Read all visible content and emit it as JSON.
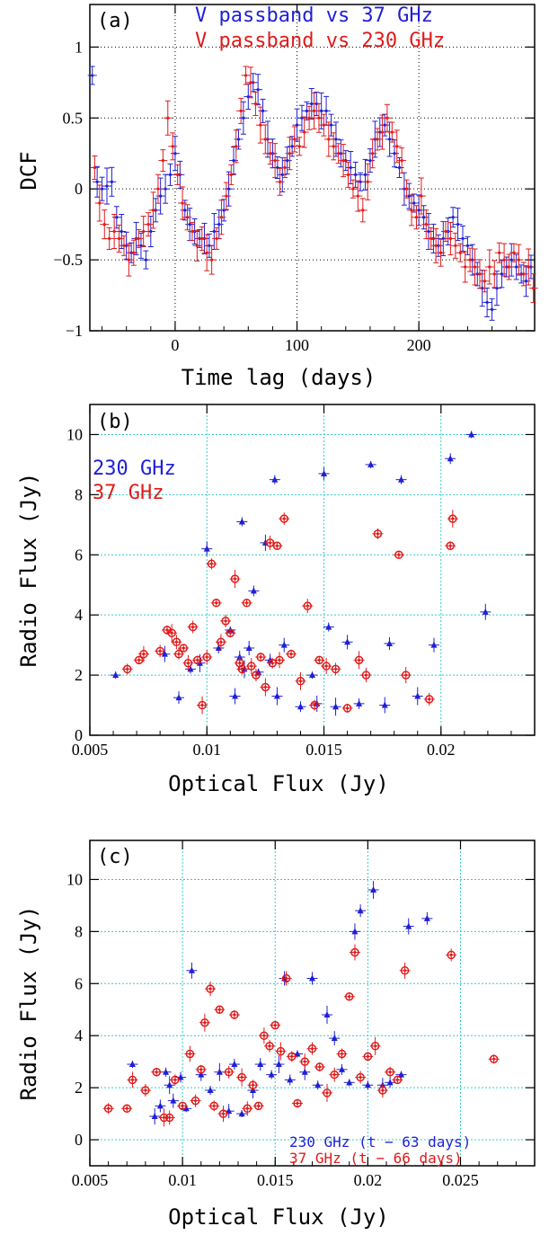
{
  "colors": {
    "blue": "#1f1fd6",
    "red": "#e01a1a",
    "grid": "#33cccc",
    "axis": "#000000"
  },
  "chart_data": [
    {
      "type": "line",
      "panel_label": "(a)",
      "xlabel": "Time lag (days)",
      "ylabel": "DCF",
      "xlim": [
        -70,
        295
      ],
      "ylim": [
        -1,
        1.3
      ],
      "xticks": [
        0,
        100,
        200
      ],
      "yticks": [
        -1,
        -0.5,
        0,
        0.5,
        1
      ],
      "ytick_labels": [
        "−1",
        "−0.5",
        "0",
        "0.5",
        "1"
      ],
      "grid": "dotted",
      "legend_position": "top-center",
      "series": [
        {
          "name": "V passband vs 37 GHz",
          "color": "#1f1fd6",
          "x": [
            -68,
            -64,
            -60,
            -56,
            -52,
            -48,
            -44,
            -40,
            -36,
            -32,
            -28,
            -24,
            -20,
            -16,
            -12,
            -8,
            -4,
            0,
            4,
            8,
            12,
            16,
            20,
            24,
            28,
            32,
            36,
            40,
            44,
            48,
            52,
            56,
            60,
            64,
            68,
            72,
            76,
            80,
            84,
            88,
            92,
            96,
            100,
            104,
            108,
            112,
            116,
            120,
            124,
            128,
            132,
            136,
            140,
            144,
            148,
            152,
            156,
            160,
            164,
            168,
            172,
            176,
            180,
            184,
            188,
            192,
            196,
            200,
            204,
            208,
            212,
            216,
            220,
            224,
            228,
            232,
            236,
            240,
            244,
            248,
            252,
            256,
            260,
            264,
            268,
            272,
            276,
            280,
            284,
            288,
            292
          ],
          "y": [
            0.8,
            0.05,
            0.0,
            0.02,
            0.05,
            -0.2,
            -0.3,
            -0.4,
            -0.45,
            -0.35,
            -0.4,
            -0.5,
            -0.3,
            -0.15,
            -0.05,
            0.0,
            0.1,
            0.25,
            0.1,
            -0.15,
            -0.25,
            -0.3,
            -0.35,
            -0.35,
            -0.4,
            -0.3,
            -0.25,
            -0.15,
            0.0,
            0.2,
            0.35,
            0.5,
            0.65,
            0.75,
            0.7,
            0.55,
            0.35,
            0.25,
            0.15,
            0.1,
            0.2,
            0.3,
            0.45,
            0.5,
            0.55,
            0.6,
            0.6,
            0.55,
            0.55,
            0.45,
            0.35,
            0.25,
            0.2,
            0.15,
            0.1,
            0.05,
            0.1,
            0.2,
            0.35,
            0.4,
            0.45,
            0.35,
            0.25,
            0.15,
            0.0,
            -0.05,
            -0.1,
            -0.15,
            -0.2,
            -0.3,
            -0.35,
            -0.4,
            -0.35,
            -0.3,
            -0.2,
            -0.25,
            -0.35,
            -0.4,
            -0.5,
            -0.6,
            -0.7,
            -0.8,
            -0.85,
            -0.7,
            -0.6,
            -0.55,
            -0.5,
            -0.55,
            -0.6,
            -0.65,
            -0.55
          ]
        },
        {
          "name": "V passband vs 230 GHz",
          "color": "#e01a1a",
          "x": [
            -66,
            -62,
            -58,
            -54,
            -50,
            -46,
            -42,
            -38,
            -34,
            -30,
            -26,
            -22,
            -18,
            -14,
            -10,
            -6,
            -2,
            2,
            6,
            10,
            14,
            18,
            22,
            26,
            30,
            34,
            38,
            42,
            46,
            50,
            54,
            58,
            62,
            66,
            70,
            74,
            78,
            82,
            86,
            90,
            94,
            98,
            102,
            106,
            110,
            114,
            118,
            122,
            126,
            130,
            134,
            138,
            142,
            146,
            150,
            154,
            158,
            162,
            166,
            170,
            174,
            178,
            182,
            186,
            190,
            194,
            198,
            202,
            206,
            210,
            214,
            218,
            222,
            226,
            230,
            234,
            238,
            242,
            246,
            250,
            254,
            258,
            262,
            266,
            270,
            274,
            278,
            282,
            286,
            290,
            294
          ],
          "y": [
            0.15,
            -0.1,
            -0.25,
            -0.35,
            -0.3,
            -0.35,
            -0.4,
            -0.5,
            -0.45,
            -0.35,
            -0.3,
            -0.25,
            -0.15,
            0.0,
            0.2,
            0.5,
            0.3,
            0.1,
            -0.1,
            -0.2,
            -0.3,
            -0.4,
            -0.35,
            -0.45,
            -0.5,
            -0.35,
            -0.2,
            -0.05,
            0.1,
            0.3,
            0.55,
            0.8,
            0.75,
            0.6,
            0.45,
            0.35,
            0.25,
            0.2,
            0.05,
            0.15,
            0.25,
            0.35,
            0.3,
            0.4,
            0.5,
            0.55,
            0.5,
            0.45,
            0.35,
            0.3,
            0.25,
            0.2,
            0.1,
            0.0,
            -0.05,
            -0.15,
            0.05,
            0.25,
            0.35,
            0.4,
            0.5,
            0.4,
            0.3,
            0.2,
            0.0,
            -0.15,
            -0.2,
            -0.05,
            -0.25,
            -0.35,
            -0.4,
            -0.45,
            -0.3,
            -0.35,
            -0.4,
            -0.45,
            -0.55,
            -0.5,
            -0.55,
            -0.6,
            -0.65,
            -0.55,
            -0.6,
            -0.45,
            -0.5,
            -0.55,
            -0.45,
            -0.5,
            -0.6,
            -0.55,
            -0.7
          ]
        }
      ]
    },
    {
      "type": "scatter",
      "panel_label": "(b)",
      "xlabel": "Optical Flux (Jy)",
      "ylabel": "Radio Flux (Jy)",
      "xlim": [
        0.005,
        0.024
      ],
      "ylim": [
        0,
        11
      ],
      "xticks": [
        0.005,
        0.01,
        0.015,
        0.02
      ],
      "xtick_labels": [
        "0.005",
        "0.01",
        "0.015",
        "0.02"
      ],
      "yticks": [
        0,
        2,
        4,
        6,
        8,
        10
      ],
      "grid": "dotted",
      "legend_position": "top-left",
      "series": [
        {
          "name": "230 GHz",
          "color": "#1f1fd6",
          "x": [
            0.0061,
            0.0082,
            0.0088,
            0.0093,
            0.0097,
            0.01,
            0.0105,
            0.011,
            0.0112,
            0.0114,
            0.0115,
            0.0116,
            0.0118,
            0.012,
            0.0122,
            0.0125,
            0.0127,
            0.0129,
            0.013,
            0.0133,
            0.014,
            0.0145,
            0.0147,
            0.015,
            0.0152,
            0.0155,
            0.016,
            0.0165,
            0.017,
            0.0176,
            0.0178,
            0.0183,
            0.019,
            0.0197,
            0.0204,
            0.0213,
            0.0219
          ],
          "y": [
            2.0,
            2.7,
            1.25,
            2.2,
            2.4,
            6.2,
            2.9,
            3.5,
            1.3,
            2.6,
            7.1,
            2.2,
            2.9,
            4.8,
            2.1,
            6.4,
            2.5,
            8.5,
            1.3,
            3.0,
            0.95,
            2.0,
            1.05,
            8.7,
            3.6,
            0.95,
            3.1,
            1.05,
            9.0,
            1.0,
            3.05,
            8.5,
            1.3,
            3.0,
            9.2,
            10.0,
            4.1
          ]
        },
        {
          "name": "37 GHz",
          "color": "#e01a1a",
          "x": [
            0.0066,
            0.0071,
            0.0073,
            0.008,
            0.0083,
            0.0085,
            0.0087,
            0.0088,
            0.009,
            0.0092,
            0.0094,
            0.0096,
            0.0098,
            0.01,
            0.0102,
            0.0104,
            0.0106,
            0.0108,
            0.011,
            0.0112,
            0.0114,
            0.0115,
            0.0117,
            0.0119,
            0.0121,
            0.0123,
            0.0125,
            0.0127,
            0.0128,
            0.013,
            0.0131,
            0.0133,
            0.0136,
            0.014,
            0.0143,
            0.0146,
            0.0148,
            0.0151,
            0.0155,
            0.016,
            0.0165,
            0.0168,
            0.0173,
            0.0182,
            0.0185,
            0.0195,
            0.0204,
            0.0205
          ],
          "y": [
            2.2,
            2.5,
            2.7,
            2.8,
            3.5,
            3.4,
            3.1,
            2.7,
            2.9,
            2.4,
            3.6,
            2.5,
            1.0,
            2.6,
            5.7,
            4.4,
            3.1,
            3.8,
            3.4,
            5.2,
            2.4,
            2.2,
            4.4,
            2.3,
            2.0,
            2.6,
            1.6,
            6.4,
            2.4,
            6.3,
            2.5,
            7.2,
            2.7,
            1.8,
            4.3,
            1.0,
            2.5,
            2.3,
            2.2,
            0.9,
            2.5,
            2.0,
            6.7,
            6.0,
            2.0,
            1.2,
            6.3,
            7.2
          ]
        }
      ]
    },
    {
      "type": "scatter",
      "panel_label": "(c)",
      "xlabel": "Optical Flux (Jy)",
      "ylabel": "Radio Flux (Jy)",
      "xlim": [
        0.005,
        0.029
      ],
      "ylim": [
        -1,
        11.5
      ],
      "xticks": [
        0.005,
        0.01,
        0.015,
        0.02,
        0.025
      ],
      "xtick_labels": [
        "0.005",
        "0.01",
        "0.015",
        "0.02",
        "0.025"
      ],
      "yticks": [
        0,
        2,
        4,
        6,
        8,
        10
      ],
      "grid": "dotted",
      "legend_position": "bottom-right",
      "series": [
        {
          "name": "230 GHz (t − 63 days)",
          "color": "#1f1fd6",
          "x": [
            0.0073,
            0.0085,
            0.0088,
            0.0091,
            0.0093,
            0.0095,
            0.0099,
            0.0102,
            0.0105,
            0.011,
            0.0115,
            0.012,
            0.0125,
            0.0128,
            0.0132,
            0.0138,
            0.0142,
            0.0148,
            0.0152,
            0.0155,
            0.0158,
            0.0162,
            0.0166,
            0.017,
            0.0173,
            0.0178,
            0.0182,
            0.0186,
            0.019,
            0.0193,
            0.0196,
            0.02,
            0.0203,
            0.0208,
            0.0212,
            0.0218,
            0.0222,
            0.0232
          ],
          "y": [
            2.9,
            0.9,
            1.3,
            2.6,
            2.1,
            1.5,
            2.4,
            1.2,
            6.5,
            2.5,
            1.9,
            2.6,
            1.1,
            2.9,
            1.0,
            1.9,
            2.9,
            2.5,
            2.9,
            6.2,
            2.3,
            3.3,
            2.6,
            6.2,
            2.1,
            4.8,
            3.9,
            2.7,
            2.2,
            8.0,
            8.8,
            2.1,
            9.6,
            2.1,
            2.2,
            2.5,
            8.2,
            8.5
          ]
        },
        {
          "name": "37 GHz (t − 66 days)",
          "color": "#e01a1a",
          "x": [
            0.006,
            0.007,
            0.0073,
            0.008,
            0.0086,
            0.009,
            0.0093,
            0.0096,
            0.01,
            0.0104,
            0.0107,
            0.011,
            0.0112,
            0.0115,
            0.0117,
            0.012,
            0.0122,
            0.0125,
            0.0128,
            0.0132,
            0.0135,
            0.0138,
            0.0141,
            0.0144,
            0.0147,
            0.015,
            0.0153,
            0.0156,
            0.0159,
            0.0162,
            0.0166,
            0.017,
            0.0174,
            0.0178,
            0.0182,
            0.0186,
            0.019,
            0.0193,
            0.0196,
            0.02,
            0.0204,
            0.0208,
            0.0212,
            0.0216,
            0.022,
            0.0245,
            0.0268
          ],
          "y": [
            1.2,
            1.2,
            2.3,
            1.9,
            2.6,
            0.85,
            0.85,
            2.3,
            1.3,
            3.3,
            1.5,
            2.7,
            4.5,
            5.8,
            1.3,
            5.0,
            1.0,
            2.6,
            4.8,
            2.4,
            1.2,
            2.1,
            1.3,
            4.0,
            3.6,
            4.4,
            3.4,
            6.2,
            3.2,
            1.4,
            3.0,
            3.5,
            2.8,
            1.8,
            2.5,
            3.3,
            5.5,
            7.2,
            2.4,
            3.2,
            3.6,
            1.9,
            2.6,
            2.3,
            6.5,
            7.1,
            3.1
          ]
        }
      ]
    }
  ]
}
